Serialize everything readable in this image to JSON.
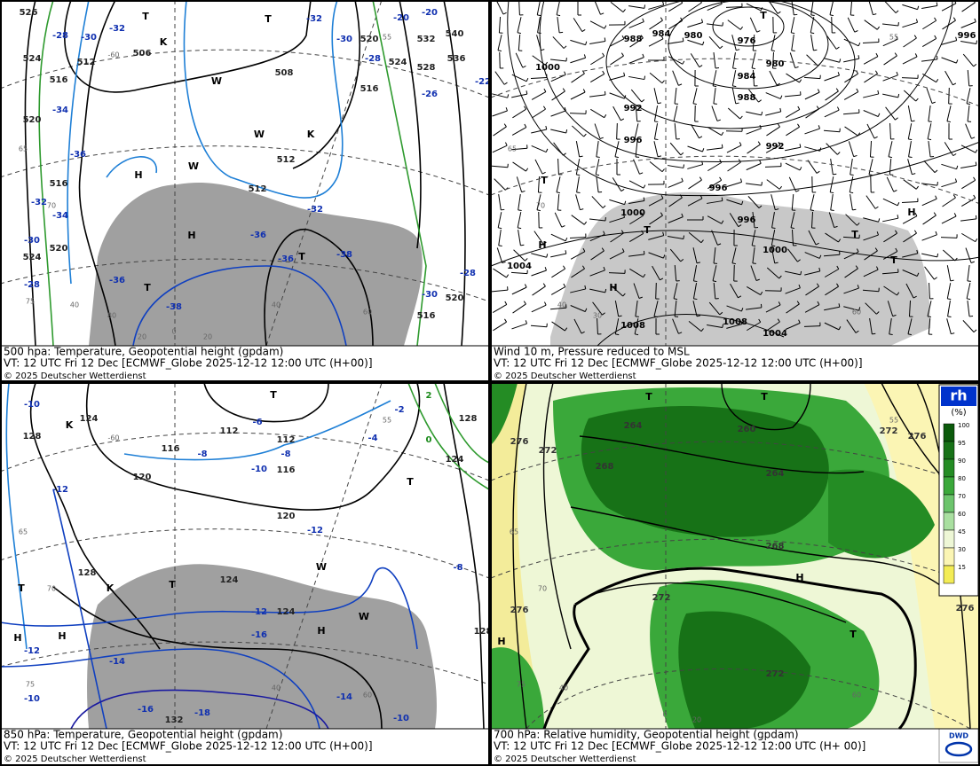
{
  "panels": [
    {
      "caption": [
        "500 hpa: Temperature, Geopotential height (gpdam)",
        "VT: 12 UTC Fri  12 Dec [ECMWF_Globe 2025-12-12 12:00 UTC  (H+00)]",
        "© 2025 Deutscher Wetterdienst"
      ],
      "labels": [
        "526",
        "-28",
        "-30",
        "-32",
        "524",
        "512",
        "506",
        "508",
        "516",
        "-34",
        "-36",
        "516",
        "-32",
        "-34",
        "520",
        "-30",
        "524",
        "-28",
        "520",
        "512",
        "512",
        "-32",
        "-36",
        "-36",
        "-38",
        "-36",
        "-38",
        "-32",
        "-30",
        "520",
        "524",
        "532",
        "536",
        "540",
        "-20",
        "-20",
        "-22",
        "528",
        "516",
        "-26",
        "-28",
        "-28",
        "-30",
        "520",
        "516",
        "H",
        "H",
        "T",
        "T",
        "T",
        "T",
        "K",
        "K",
        "W",
        "W",
        "W",
        "65",
        "70",
        "75",
        "40",
        "60",
        "20",
        "0",
        "20",
        "40",
        "80",
        "-60",
        "55"
      ]
    },
    {
      "caption": [
        "Wind 10 m, Pressure reduced to MSL",
        "VT: 12 UTC Fri  12 Dec [ECMWF_Globe 2025-12-12 12:00 UTC (H+00)]",
        "© 2025 Deutscher Wetterdienst"
      ],
      "labels": [
        "988",
        "984",
        "980",
        "976",
        "980",
        "984",
        "988",
        "992",
        "996",
        "992",
        "1000",
        "996",
        "996",
        "1000",
        "1000",
        "1004",
        "1008",
        "1008",
        "1004",
        "996",
        "T",
        "T",
        "H",
        "H",
        "T",
        "T",
        "H",
        "T",
        "65",
        "70",
        "40",
        "30",
        "60",
        "55"
      ]
    },
    {
      "caption": [
        "850 hPa:  Temperature, Geopotential height (gpdam)",
        "VT: 12 UTC Fri  12 Dec [ECMWF_Globe 2025-12-12 12:00 UTC (H+00)]",
        "© 2025 Deutscher Wetterdienst"
      ],
      "labels": [
        "-10",
        "128",
        "124",
        "112",
        "-6",
        "112",
        "-2",
        "2",
        "0",
        "-4",
        "128",
        "124",
        "116",
        "-8",
        "-8",
        "-10",
        "116",
        "120",
        "-12",
        "120",
        "-12",
        "128",
        "124",
        "-12",
        "124",
        "-16",
        "-12",
        "-14",
        "-16",
        "-18",
        "132",
        "-14",
        "-10",
        "-10",
        "-8",
        "128",
        "H",
        "H",
        "T",
        "T",
        "T",
        "H",
        "T",
        "K",
        "K",
        "W",
        "W",
        "65",
        "70",
        "75",
        "40",
        "60",
        "-60",
        "55"
      ]
    },
    {
      "caption": [
        "700 hPa:  Relative humidity, Geopotential height (gpdam)",
        "VT: 12 UTC Fri  12 Dec [ECMWF_Globe 2025-12-12 12:00 UTC (H+ 00)]",
        "© 2025 Deutscher Wetterdienst"
      ],
      "labels": [
        "276",
        "272",
        "264",
        "260",
        "268",
        "264",
        "268",
        "272",
        "276",
        "272",
        "272",
        "276",
        "276",
        "T",
        "T",
        "H",
        "T",
        "H",
        "65",
        "70",
        "75",
        "40",
        "60",
        "20",
        "0",
        "55"
      ],
      "colorbar": {
        "title": "rh",
        "unit": "(%)",
        "levels": [
          {
            "label": "100",
            "color": "#0b5a0b"
          },
          {
            "label": "95",
            "color": "#177217"
          },
          {
            "label": "90",
            "color": "#248c24"
          },
          {
            "label": "80",
            "color": "#3aa83a"
          },
          {
            "label": "70",
            "color": "#6cc46c"
          },
          {
            "label": "60",
            "color": "#a9dfa0"
          },
          {
            "label": "45",
            "color": "#eef7d6"
          },
          {
            "label": "30",
            "color": "#fbf5b4"
          },
          {
            "label": "15",
            "color": "#f3ec55"
          }
        ]
      },
      "logo": "DWD"
    }
  ]
}
